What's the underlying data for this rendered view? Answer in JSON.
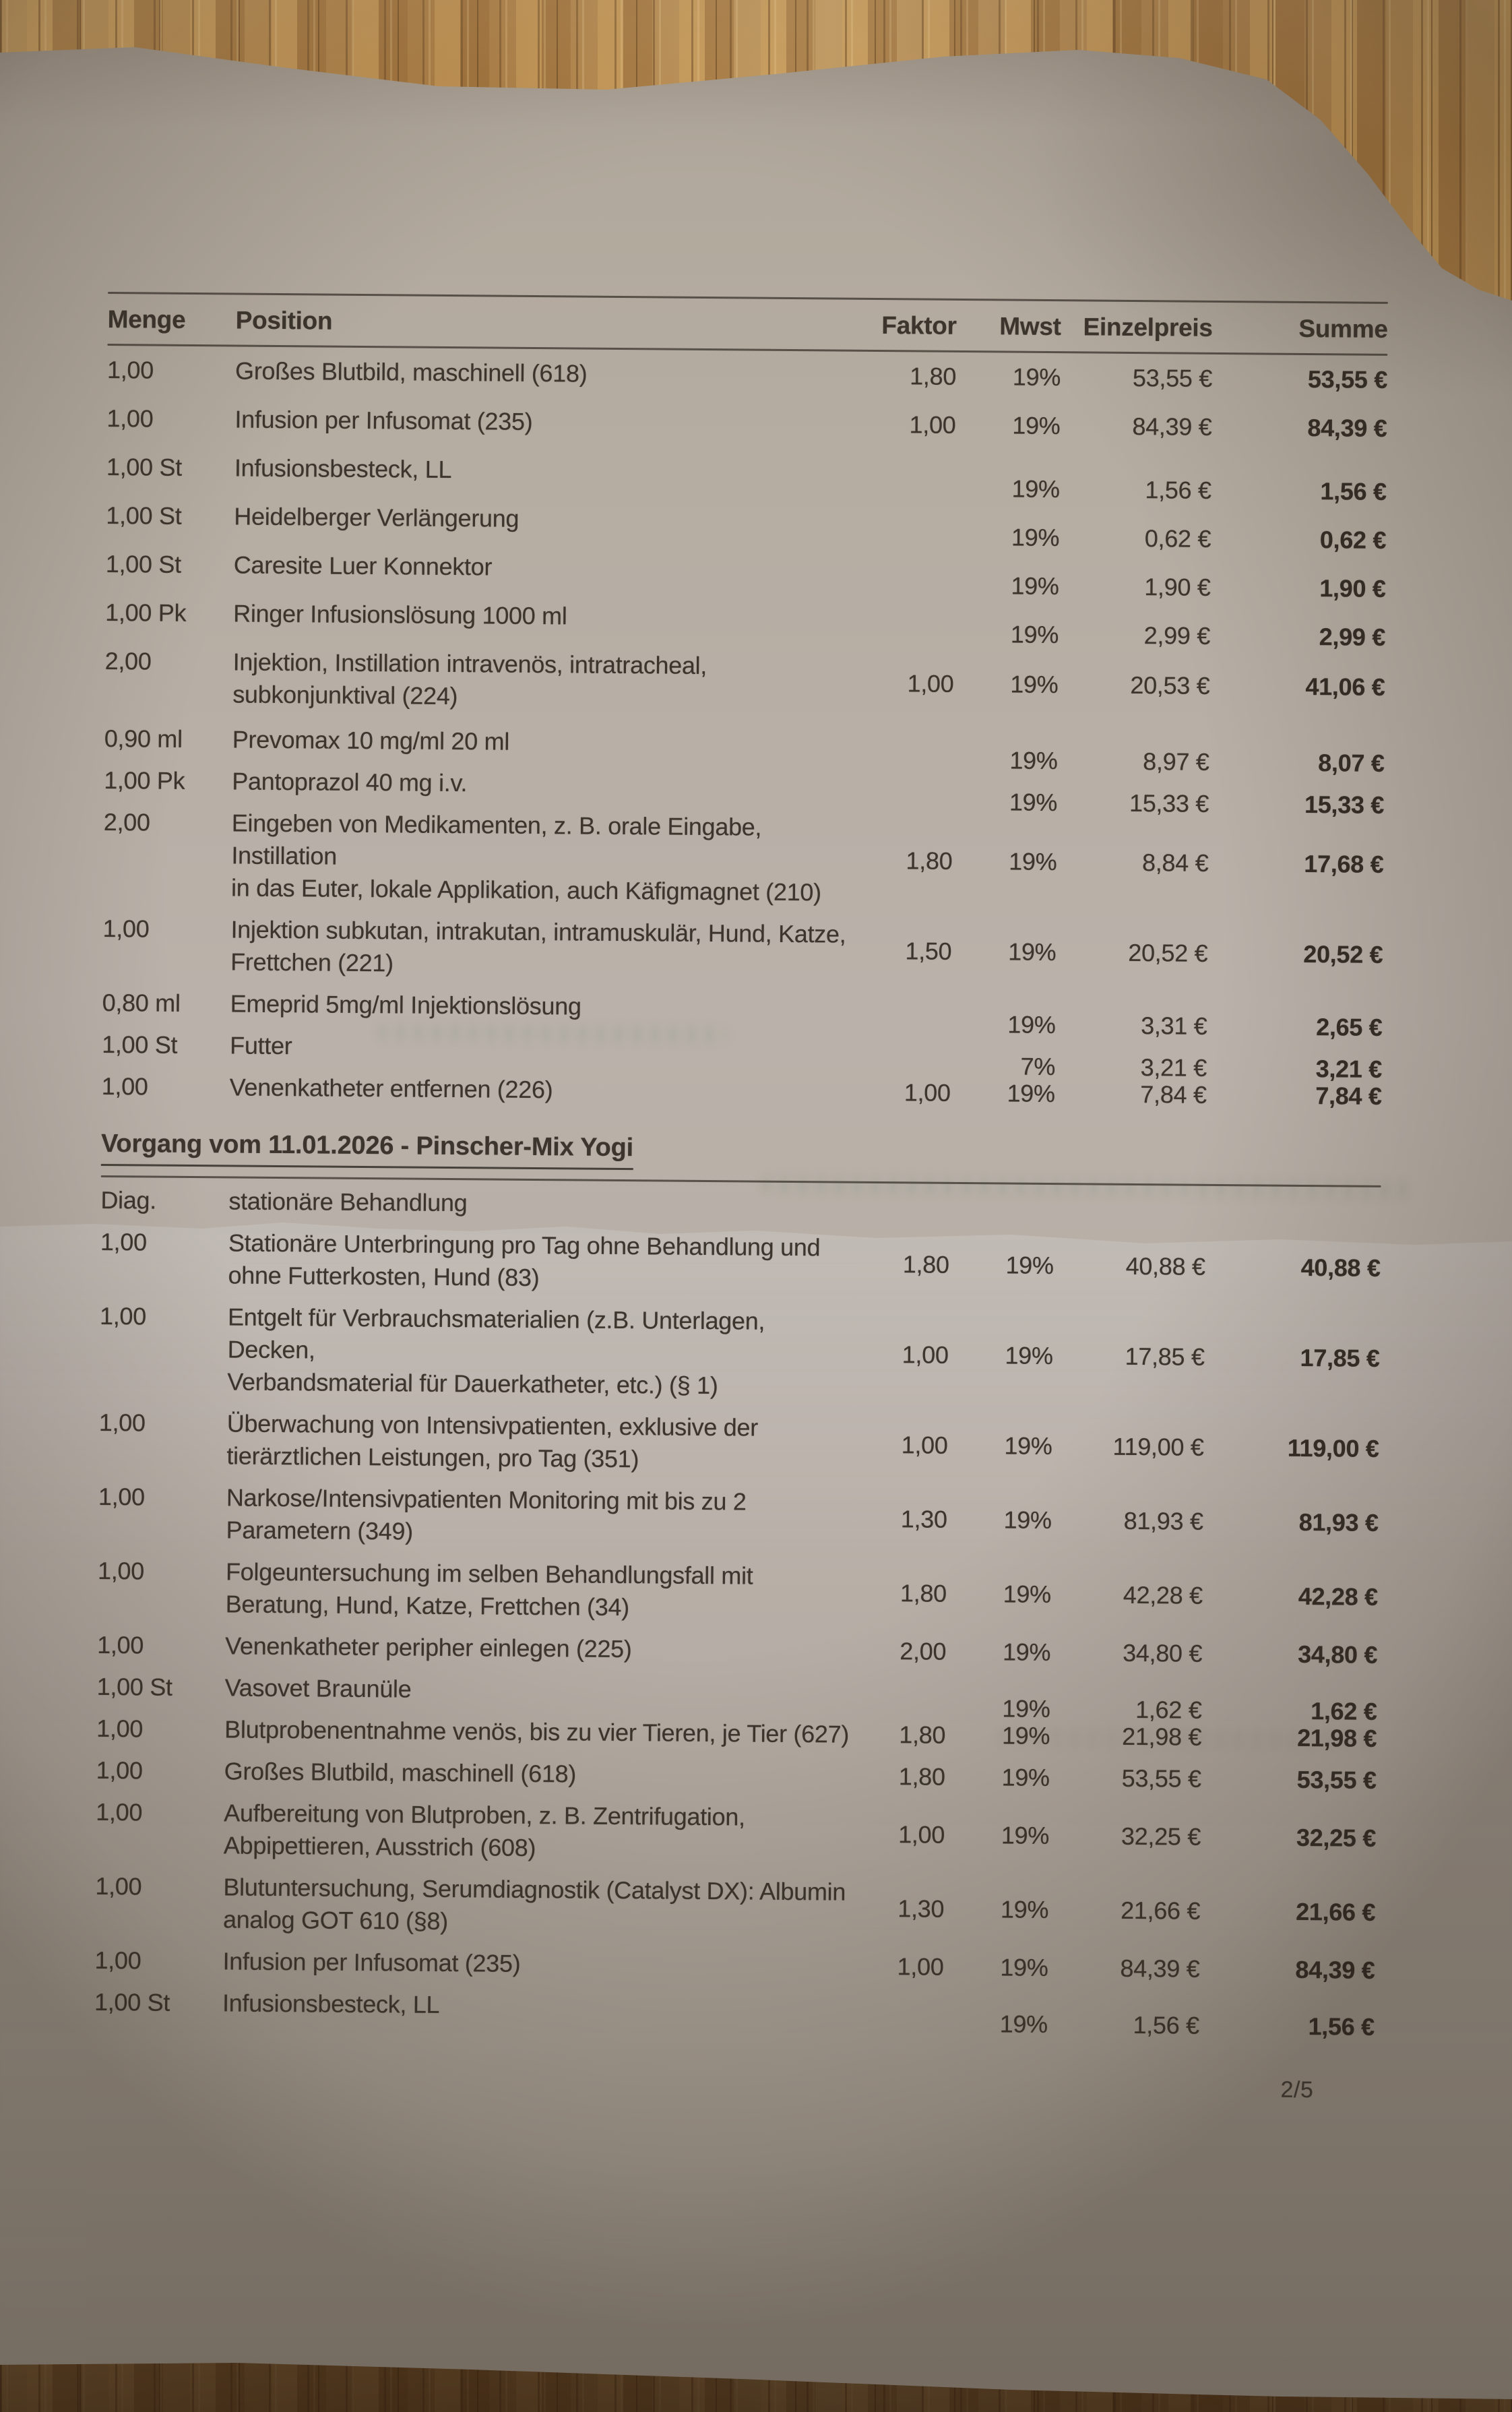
{
  "header": {
    "columns": {
      "menge": "Menge",
      "position": "Position",
      "faktor": "Faktor",
      "mwst": "Mwst",
      "einzelpreis": "Einzelpreis",
      "summe": "Summe"
    }
  },
  "rows_block1": [
    {
      "menge": "1,00",
      "position": "Großes Blutbild, maschinell (618)",
      "faktor": "1,80",
      "mwst": "19%",
      "einzelpreis": "53,55 €",
      "summe": "53,55 €"
    },
    {
      "menge": "1,00",
      "position": "Infusion per Infusomat (235)",
      "faktor": "1,00",
      "mwst": "19%",
      "einzelpreis": "84,39 €",
      "summe": "84,39 €"
    },
    {
      "menge": "1,00 St",
      "position": "Infusionsbesteck, LL",
      "faktor": "",
      "mwst": "19%",
      "einzelpreis": "1,56 €",
      "summe": "1,56 €"
    },
    {
      "menge": "1,00 St",
      "position": "Heidelberger Verlängerung",
      "faktor": "",
      "mwst": "19%",
      "einzelpreis": "0,62 €",
      "summe": "0,62 €"
    },
    {
      "menge": "1,00 St",
      "position": "Caresite Luer Konnektor",
      "faktor": "",
      "mwst": "19%",
      "einzelpreis": "1,90 €",
      "summe": "1,90 €"
    },
    {
      "menge": "1,00 Pk",
      "position": "Ringer Infusionslösung 1000 ml",
      "faktor": "",
      "mwst": "19%",
      "einzelpreis": "2,99 €",
      "summe": "2,99 €"
    },
    {
      "menge": "2,00",
      "position": "Injektion, Instillation intravenös, intratracheal,\nsubkonjunktival (224)",
      "faktor": "1,00",
      "mwst": "19%",
      "einzelpreis": "20,53 €",
      "summe": "41,06 €"
    },
    {
      "menge": "0,90 ml",
      "position": "Prevomax 10 mg/ml 20 ml",
      "faktor": "",
      "mwst": "19%",
      "einzelpreis": "8,97 €",
      "summe": "8,07 €"
    },
    {
      "menge": "1,00 Pk",
      "position": "Pantoprazol 40 mg i.v.",
      "faktor": "",
      "mwst": "19%",
      "einzelpreis": "15,33 €",
      "summe": "15,33 €"
    },
    {
      "menge": "2,00",
      "position": "Eingeben von Medikamenten, z. B. orale Eingabe, Instillation\nin das Euter, lokale Applikation, auch Käfigmagnet (210)",
      "faktor": "1,80",
      "mwst": "19%",
      "einzelpreis": "8,84 €",
      "summe": "17,68 €"
    },
    {
      "menge": "1,00",
      "position": "Injektion subkutan, intrakutan, intramuskulär, Hund, Katze,\nFrettchen (221)",
      "faktor": "1,50",
      "mwst": "19%",
      "einzelpreis": "20,52 €",
      "summe": "20,52 €"
    },
    {
      "menge": "0,80 ml",
      "position": "Emeprid 5mg/ml Injektionslösung",
      "faktor": "",
      "mwst": "19%",
      "einzelpreis": "3,31 €",
      "summe": "2,65 €"
    },
    {
      "menge": "1,00 St",
      "position": "Futter",
      "faktor": "",
      "mwst": "7%",
      "einzelpreis": "3,21 €",
      "summe": "3,21 €"
    },
    {
      "menge": "1,00",
      "position": "Venenkatheter entfernen (226)",
      "faktor": "1,00",
      "mwst": "19%",
      "einzelpreis": "7,84 €",
      "summe": "7,84 €"
    }
  ],
  "section": {
    "title": "Vorgang vom 11.01.2026 - Pinscher-Mix Yogi",
    "diag_label": "Diag.",
    "diag_value": "stationäre Behandlung"
  },
  "rows_block2": [
    {
      "menge": "1,00",
      "position": "Stationäre Unterbringung pro Tag ohne Behandlung und\nohne Futterkosten, Hund (83)",
      "faktor": "1,80",
      "mwst": "19%",
      "einzelpreis": "40,88 €",
      "summe": "40,88 €"
    },
    {
      "menge": "1,00",
      "position": "Entgelt für Verbrauchsmaterialien (z.B. Unterlagen, Decken,\nVerbandsmaterial für Dauerkatheter, etc.) (§ 1)",
      "faktor": "1,00",
      "mwst": "19%",
      "einzelpreis": "17,85 €",
      "summe": "17,85 €"
    },
    {
      "menge": "1,00",
      "position": "Überwachung von Intensivpatienten, exklusive der\ntierärztlichen Leistungen, pro Tag (351)",
      "faktor": "1,00",
      "mwst": "19%",
      "einzelpreis": "119,00 €",
      "summe": "119,00 €"
    },
    {
      "menge": "1,00",
      "position": "Narkose/Intensivpatienten Monitoring mit bis zu 2\nParametern (349)",
      "faktor": "1,30",
      "mwst": "19%",
      "einzelpreis": "81,93 €",
      "summe": "81,93 €"
    },
    {
      "menge": "1,00",
      "position": "Folgeuntersuchung im selben Behandlungsfall mit\nBeratung, Hund, Katze, Frettchen (34)",
      "faktor": "1,80",
      "mwst": "19%",
      "einzelpreis": "42,28 €",
      "summe": "42,28 €"
    },
    {
      "menge": "1,00",
      "position": "Venenkatheter peripher einlegen (225)",
      "faktor": "2,00",
      "mwst": "19%",
      "einzelpreis": "34,80 €",
      "summe": "34,80 €"
    },
    {
      "menge": "1,00 St",
      "position": "Vasovet Braunüle",
      "faktor": "",
      "mwst": "19%",
      "einzelpreis": "1,62 €",
      "summe": "1,62 €"
    },
    {
      "menge": "1,00",
      "position": "Blutprobenentnahme venös, bis zu vier Tieren, je Tier (627)",
      "faktor": "1,80",
      "mwst": "19%",
      "einzelpreis": "21,98 €",
      "summe": "21,98 €"
    },
    {
      "menge": "1,00",
      "position": "Großes Blutbild, maschinell (618)",
      "faktor": "1,80",
      "mwst": "19%",
      "einzelpreis": "53,55 €",
      "summe": "53,55 €"
    },
    {
      "menge": "1,00",
      "position": "Aufbereitung von Blutproben, z. B. Zentrifugation,\nAbpipettieren, Ausstrich (608)",
      "faktor": "1,00",
      "mwst": "19%",
      "einzelpreis": "32,25 €",
      "summe": "32,25 €"
    },
    {
      "menge": "1,00",
      "position": "Blutuntersuchung, Serumdiagnostik (Catalyst DX): Albumin\nanalog GOT 610 (§8)",
      "faktor": "1,30",
      "mwst": "19%",
      "einzelpreis": "21,66 €",
      "summe": "21,66 €"
    },
    {
      "menge": "1,00",
      "position": "Infusion per Infusomat (235)",
      "faktor": "1,00",
      "mwst": "19%",
      "einzelpreis": "84,39 €",
      "summe": "84,39 €"
    },
    {
      "menge": "1,00 St",
      "position": "Infusionsbesteck, LL",
      "faktor": "",
      "mwst": "19%",
      "einzelpreis": "1,56 €",
      "summe": "1,56 €"
    }
  ],
  "footer": {
    "page_number": "2/5"
  },
  "colors": {
    "paper": "#b6ada3",
    "ink": "#3b352d",
    "wood_light": "#c59a5c",
    "wood_dark": "#5e3c22",
    "rule": "#46413a"
  }
}
